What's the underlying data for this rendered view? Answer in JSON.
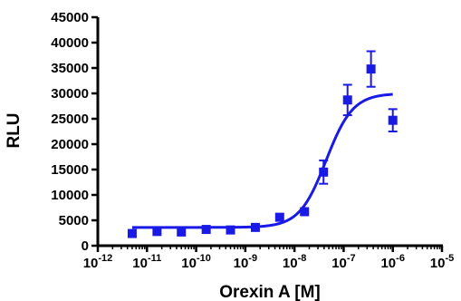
{
  "chart_data": {
    "type": "scatter",
    "xlabel": "Orexin A [M]",
    "ylabel": "RLU",
    "x_scale": "log",
    "xlim": [
      1e-12,
      1e-05
    ],
    "ylim": [
      0,
      45000
    ],
    "x_ticks": [
      {
        "value": 1e-12,
        "base": "10",
        "exp": "-12"
      },
      {
        "value": 1e-11,
        "base": "10",
        "exp": "-11"
      },
      {
        "value": 1e-10,
        "base": "10",
        "exp": "-10"
      },
      {
        "value": 1e-09,
        "base": "10",
        "exp": "-9"
      },
      {
        "value": 1e-08,
        "base": "10",
        "exp": "-8"
      },
      {
        "value": 1e-07,
        "base": "10",
        "exp": "-7"
      },
      {
        "value": 1e-06,
        "base": "10",
        "exp": "-6"
      },
      {
        "value": 1e-05,
        "base": "10",
        "exp": "-5"
      }
    ],
    "y_ticks": [
      0,
      5000,
      10000,
      15000,
      20000,
      25000,
      30000,
      35000,
      40000,
      45000
    ],
    "color": "#1a1ae6",
    "points": [
      {
        "x": 5e-12,
        "y": 2400,
        "err": 0
      },
      {
        "x": 1.6e-11,
        "y": 2800,
        "err": 0
      },
      {
        "x": 5e-11,
        "y": 2700,
        "err": 0
      },
      {
        "x": 1.6e-10,
        "y": 3200,
        "err": 0
      },
      {
        "x": 5e-10,
        "y": 3100,
        "err": 0
      },
      {
        "x": 1.6e-09,
        "y": 3600,
        "err": 0
      },
      {
        "x": 5e-09,
        "y": 5600,
        "err": 0
      },
      {
        "x": 1.6e-08,
        "y": 6700,
        "err": 0
      },
      {
        "x": 3.9e-08,
        "y": 14500,
        "err": 2300
      },
      {
        "x": 1.2e-07,
        "y": 28700,
        "err": 3000
      },
      {
        "x": 3.6e-07,
        "y": 34800,
        "err": 3500
      },
      {
        "x": 1e-06,
        "y": 24700,
        "err": 2200
      }
    ],
    "fit": {
      "model": "sigmoidal dose-response",
      "bottom": 3600,
      "top": 30000,
      "ec50": 4.4e-08,
      "hill": 1.6,
      "x_range": [
        5e-12,
        1e-06
      ]
    }
  }
}
